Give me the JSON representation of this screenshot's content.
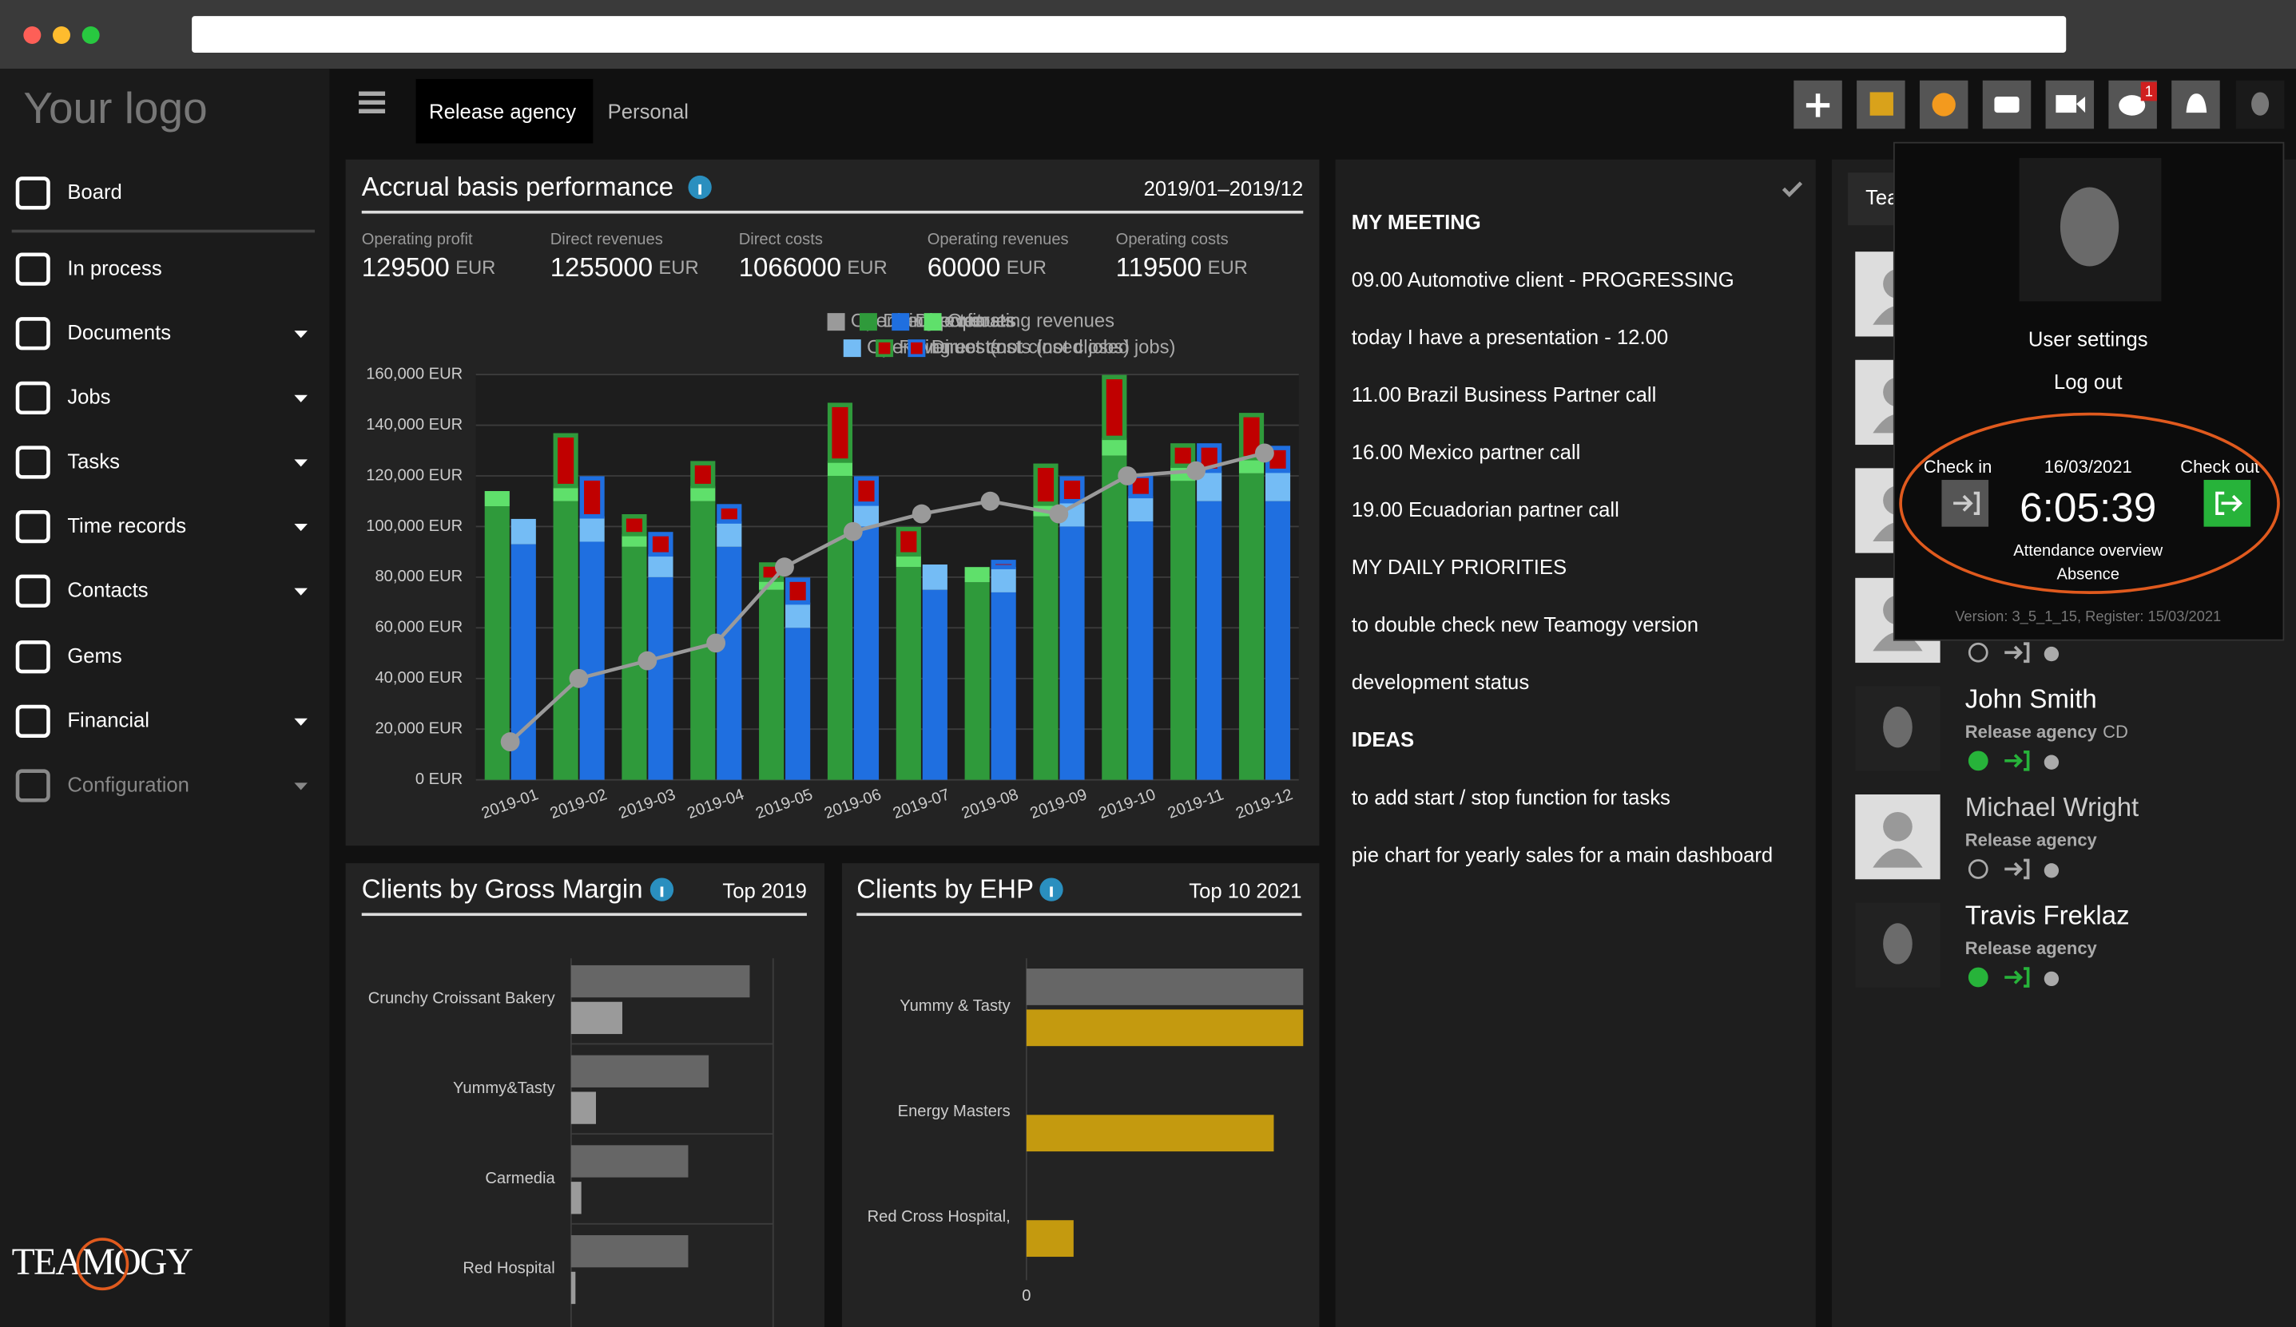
{
  "sidebar": {
    "logo": "Your logo",
    "items": [
      {
        "label": "Board",
        "submenu": false,
        "disabled": false
      },
      {
        "label": "In process",
        "submenu": false,
        "disabled": false
      },
      {
        "label": "Documents",
        "submenu": true,
        "disabled": false
      },
      {
        "label": "Jobs",
        "submenu": true,
        "disabled": false
      },
      {
        "label": "Tasks",
        "submenu": true,
        "disabled": false
      },
      {
        "label": "Time records",
        "submenu": true,
        "disabled": false
      },
      {
        "label": "Contacts",
        "submenu": true,
        "disabled": false
      },
      {
        "label": "Gems",
        "submenu": false,
        "disabled": false
      },
      {
        "label": "Financial",
        "submenu": true,
        "disabled": false
      },
      {
        "label": "Configuration",
        "submenu": true,
        "disabled": true
      }
    ],
    "brand": "TEAMOGY"
  },
  "tabs": [
    "Release agency",
    "Personal"
  ],
  "notification_count": 1,
  "kpis": [
    {
      "label": "Operating profit",
      "value": 129500,
      "unit": "EUR"
    },
    {
      "label": "Direct revenues",
      "value": 1255000,
      "unit": "EUR"
    },
    {
      "label": "Direct costs",
      "value": 1066000,
      "unit": "EUR"
    },
    {
      "label": "Operating revenues",
      "value": 60000,
      "unit": "EUR"
    },
    {
      "label": "Operating costs",
      "value": 119500,
      "unit": "EUR"
    }
  ],
  "chart_data": [
    {
      "type": "bar",
      "title": "Accrual basis performance",
      "subtitle": "2019/01–2019/12",
      "categories": [
        "2019-01",
        "2019-02",
        "2019-03",
        "2019-04",
        "2019-05",
        "2019-06",
        "2019-07",
        "2019-08",
        "2019-09",
        "2019-10",
        "2019-11",
        "2019-12"
      ],
      "series": [
        {
          "name": "Operating profit",
          "type": "line",
          "color": "#9a9a9a",
          "values": [
            15000,
            40000,
            47000,
            54000,
            84000,
            98000,
            105000,
            110000,
            105000,
            120000,
            122000,
            129000
          ]
        },
        {
          "name": "Direct revenues",
          "stack": "revenue",
          "color": "#2f9a3b",
          "values": [
            108000,
            110000,
            92000,
            110000,
            75000,
            120000,
            84000,
            78000,
            104000,
            128000,
            118000,
            121000
          ]
        },
        {
          "name": "Direct costs",
          "stack": "cost",
          "color": "#1f6fe0",
          "values": [
            93000,
            94000,
            80000,
            92000,
            60000,
            100000,
            75000,
            74000,
            100000,
            102000,
            110000,
            110000
          ]
        },
        {
          "name": "Operating revenues",
          "stack": "revenue",
          "color": "#5fe06b",
          "values": [
            6000,
            6000,
            5000,
            6000,
            4000,
            6000,
            5000,
            6000,
            5000,
            7000,
            6000,
            6000
          ]
        },
        {
          "name": "Operating costs",
          "stack": "cost",
          "color": "#74bcf5",
          "values": [
            10000,
            10000,
            9000,
            10000,
            10000,
            9000,
            10000,
            10000,
            10000,
            10000,
            12000,
            12000
          ]
        },
        {
          "name": "Revenues (not closed jobs)",
          "stack": "revenue",
          "outlined": true,
          "color": "#c00000",
          "values": [
            0,
            20000,
            7000,
            9000,
            6000,
            22000,
            10000,
            0,
            15000,
            24000,
            8000,
            17000
          ]
        },
        {
          "name": "Direct costs (not closed jobs)",
          "stack": "cost",
          "outlined": true,
          "color": "#c00000",
          "values": [
            0,
            15000,
            8000,
            6000,
            9000,
            10000,
            0,
            2000,
            9000,
            8000,
            10000,
            9000
          ]
        }
      ],
      "ylim": [
        0,
        160000
      ],
      "yticks": [
        {
          "value": 0,
          "label": "0 EUR"
        },
        {
          "value": 20000,
          "label": "20,000 EUR"
        },
        {
          "value": 40000,
          "label": "40,000 EUR"
        },
        {
          "value": 60000,
          "label": "60,000 EUR"
        },
        {
          "value": 80000,
          "label": "80,000 EUR"
        },
        {
          "value": 100000,
          "label": "100,000 EUR"
        },
        {
          "value": 120000,
          "label": "120,000 EUR"
        },
        {
          "value": 140000,
          "label": "140,000 EUR"
        },
        {
          "value": 160000,
          "label": "160,000 EUR"
        }
      ],
      "grid": true
    },
    {
      "type": "hbar",
      "title": "Clients by Gross Margin",
      "subtitle": "Top 2019",
      "categories": [
        "Crunchy Croissant Bakery",
        "Yummy&Tasty",
        "Carmedia",
        "Red Hospital"
      ],
      "series": [
        {
          "color": "#666666",
          "values": [
            122,
            94,
            80,
            80
          ]
        },
        {
          "color": "#9a9a9a",
          "values": [
            35,
            17,
            7,
            3
          ]
        }
      ],
      "xlim": [
        0,
        138
      ]
    },
    {
      "type": "hbar",
      "title": "Clients by EHP",
      "subtitle": "Top 10 2021",
      "categories": [
        "Yummy & Tasty",
        "Energy Masters",
        "Red Cross Hospital,"
      ],
      "series": [
        {
          "color": "#666666",
          "values": [
            188,
            null,
            null
          ]
        },
        {
          "color": "#c49a0f",
          "values": [
            188,
            168,
            32
          ]
        }
      ],
      "xlim": [
        0,
        188
      ],
      "xticks": [
        0
      ]
    }
  ],
  "notes": [
    {
      "text": "MY MEETING",
      "bold": true
    },
    {
      "text": "09.00 Automotive client - PROGRESSING",
      "bold": false
    },
    {
      "text": "today I have a presentation - 12.00",
      "bold": false
    },
    {
      "text": "11.00 Brazil Business Partner call",
      "bold": false
    },
    {
      "text": "16.00 Mexico partner call",
      "bold": false
    },
    {
      "text": "19.00 Ecuadorian partner call",
      "bold": false
    },
    {
      "text": "MY DAILY PRIORITIES",
      "bold": false
    },
    {
      "text": "to double check new Teamogy version",
      "bold": false
    },
    {
      "text": "development status",
      "bold": false
    },
    {
      "text": "IDEAS",
      "bold": true
    },
    {
      "text": "to add start / stop function  for tasks",
      "bold": false
    },
    {
      "text": "pie chart for yearly sales for a main dashboard",
      "bold": false
    }
  ],
  "team": {
    "title": "Tea",
    "members": [
      {
        "name": "John Smith",
        "company": "Release agency",
        "role": "CD",
        "online": true,
        "photo": true
      },
      {
        "name": "Michael Wright",
        "company": "Release agency",
        "online": false,
        "photo": false
      },
      {
        "name": "Travis Freklaz",
        "company": "Release agency",
        "online": true,
        "photo": true
      }
    ]
  },
  "user_menu": {
    "settings": "User settings",
    "logout": "Log out",
    "check_in": "Check in",
    "date": "16/03/2021",
    "time": "6:05:39",
    "check_out": "Check out",
    "attendance": "Attendance overview",
    "absence": "Absence",
    "version": "Version: 3_5_1_15, Register: 15/03/2021"
  }
}
